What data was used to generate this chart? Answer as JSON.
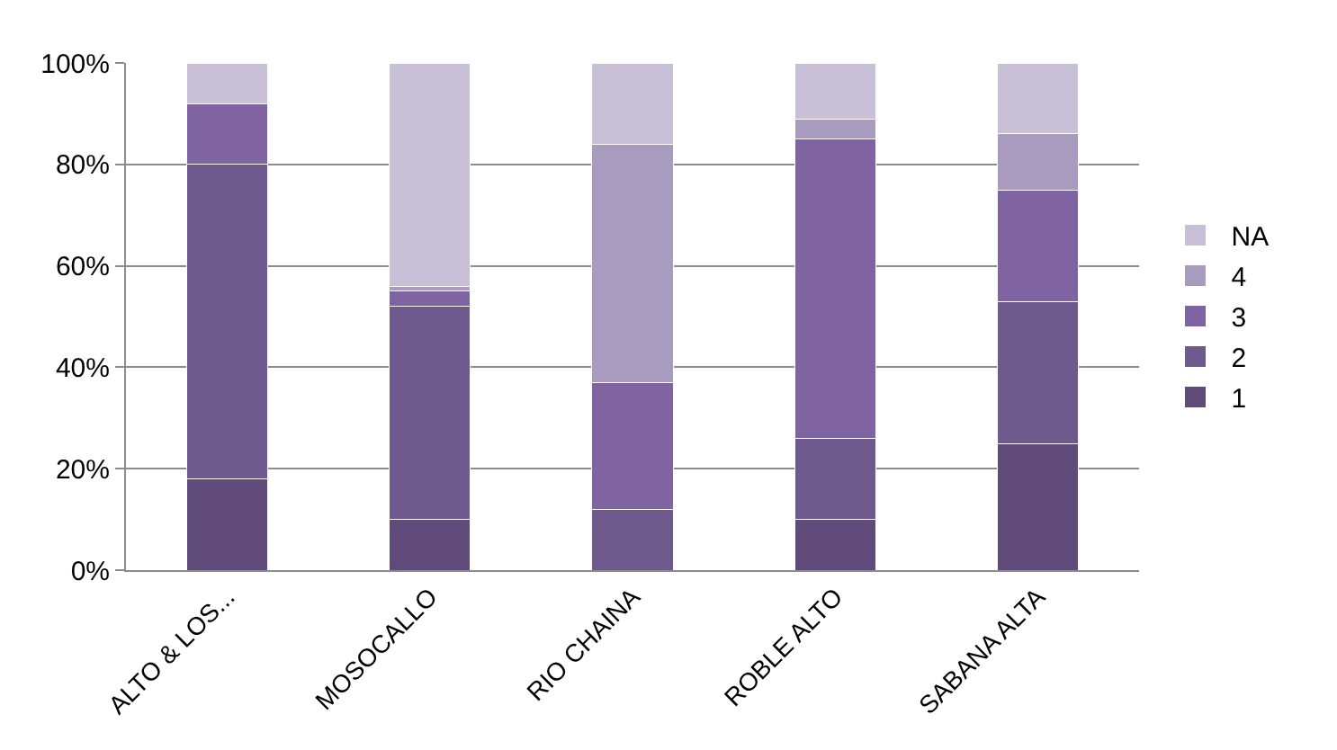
{
  "chart_data": {
    "type": "bar",
    "stacked": true,
    "categories": [
      "ALTO & LOS...",
      "MOSOCALLO",
      "RIO CHAINA",
      "ROBLE ALTO",
      "SABANA ALTA"
    ],
    "series": [
      {
        "name": "1",
        "color": "#5f4a7a",
        "values": [
          18,
          10,
          0,
          10,
          25
        ]
      },
      {
        "name": "2",
        "color": "#6f5a8e",
        "values": [
          62,
          42,
          12,
          16,
          28
        ]
      },
      {
        "name": "3",
        "color": "#8064a2",
        "values": [
          12,
          3,
          25,
          59,
          22
        ]
      },
      {
        "name": "4",
        "color": "#a99bbd",
        "values": [
          0,
          1,
          47,
          4,
          11
        ]
      },
      {
        "name": "NA",
        "color": "#c7c0d6",
        "values": [
          8,
          44,
          16,
          11,
          14
        ]
      }
    ],
    "ylim": [
      0,
      100
    ],
    "yticks": [
      {
        "value": 0,
        "label": "0%"
      },
      {
        "value": 20,
        "label": "20%"
      },
      {
        "value": 40,
        "label": "40%"
      },
      {
        "value": 60,
        "label": "60%"
      },
      {
        "value": 80,
        "label": "80%"
      },
      {
        "value": 100,
        "label": "100%"
      }
    ],
    "grid": "y",
    "legend": "right"
  }
}
